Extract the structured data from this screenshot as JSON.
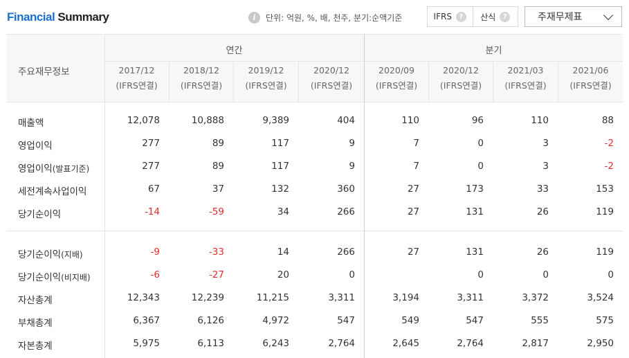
{
  "header": {
    "title_part1": "Financial",
    "title_part2": " Summary",
    "unit_text": "단위: 억원, %, 배, 천주, 분기:순액기준",
    "info_icon": "i",
    "toggles": [
      {
        "label": "IFRS",
        "help": "?"
      },
      {
        "label": "산식",
        "help": "?"
      }
    ],
    "select_value": "주재무제표"
  },
  "table": {
    "row_header": "주요재무정보",
    "groups": {
      "annual": "연간",
      "quarter": "분기"
    },
    "columns": [
      {
        "period": "2017/12",
        "basis": "(IFRS연결)"
      },
      {
        "period": "2018/12",
        "basis": "(IFRS연결)"
      },
      {
        "period": "2019/12",
        "basis": "(IFRS연결)"
      },
      {
        "period": "2020/12",
        "basis": "(IFRS연결)"
      },
      {
        "period": "2020/09",
        "basis": "(IFRS연결)"
      },
      {
        "period": "2020/12",
        "basis": "(IFRS연결)"
      },
      {
        "period": "2021/03",
        "basis": "(IFRS연결)"
      },
      {
        "period": "2021/06",
        "basis": "(IFRS연결)"
      }
    ],
    "rows": [
      {
        "label": "매출액",
        "sub": "",
        "values": [
          "12,078",
          "10,888",
          "9,389",
          "404",
          "110",
          "96",
          "110",
          "88"
        ]
      },
      {
        "label": "영업이익",
        "sub": "",
        "values": [
          "277",
          "89",
          "117",
          "9",
          "7",
          "0",
          "3",
          "-2"
        ]
      },
      {
        "label": "영업이익",
        "sub": "(발표기준)",
        "values": [
          "277",
          "89",
          "117",
          "9",
          "7",
          "0",
          "3",
          "-2"
        ]
      },
      {
        "label": "세전계속사업이익",
        "sub": "",
        "values": [
          "67",
          "37",
          "132",
          "360",
          "27",
          "173",
          "33",
          "153"
        ]
      },
      {
        "label": "당기순이익",
        "sub": "",
        "values": [
          "-14",
          "-59",
          "34",
          "266",
          "27",
          "131",
          "26",
          "119"
        ]
      },
      {
        "label": "당기순이익",
        "sub": "(지배)",
        "values": [
          "-9",
          "-33",
          "14",
          "266",
          "27",
          "131",
          "26",
          "119"
        ]
      },
      {
        "label": "당기순이익",
        "sub": "(비지배)",
        "values": [
          "-6",
          "-27",
          "20",
          "0",
          "",
          "0",
          "0",
          "0"
        ]
      },
      {
        "label": "자산총계",
        "sub": "",
        "values": [
          "12,343",
          "12,239",
          "11,215",
          "3,311",
          "3,194",
          "3,311",
          "3,372",
          "3,524"
        ]
      },
      {
        "label": "부채총계",
        "sub": "",
        "values": [
          "6,367",
          "6,126",
          "4,972",
          "547",
          "549",
          "547",
          "555",
          "575"
        ]
      },
      {
        "label": "자본총계",
        "sub": "",
        "values": [
          "5,975",
          "6,113",
          "6,243",
          "2,764",
          "2,645",
          "2,764",
          "2,817",
          "2,950"
        ]
      }
    ]
  },
  "colors": {
    "accent": "#1a6fd1",
    "negative": "#e52b2b",
    "header_bg": "#f7f7f7",
    "border": "#e6e6e6"
  }
}
